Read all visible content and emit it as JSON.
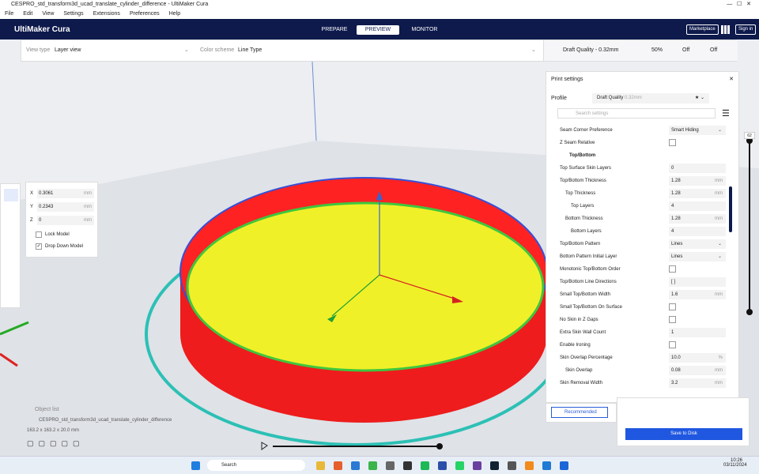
{
  "window_title": "CESPRO_std_transform3d_ucad_translate_cylinder_difference - UltiMaker Cura",
  "menu": [
    "File",
    "Edit",
    "View",
    "Settings",
    "Extensions",
    "Preferences",
    "Help"
  ],
  "header": {
    "brand": "UltiMaker Cura",
    "tabs": [
      "PREPARE",
      "PREVIEW",
      "MONITOR"
    ],
    "marketplace": "Marketplace",
    "sign_in": "Sign in"
  },
  "toolbar": {
    "view_type_label": "View type",
    "view_type": "Layer view",
    "color_scheme_label": "Color scheme",
    "color_scheme": "Line Type",
    "quality": "Draft Quality - 0.32mm",
    "infill": "50%",
    "support": "Off",
    "adhesion": "Off"
  },
  "print_settings": {
    "title": "Print settings",
    "profile_label": "Profile",
    "profile": "Draft Quality",
    "profile_detail": "0.32mm",
    "search": "Search settings",
    "section": "Top/Bottom",
    "rows_before": [
      {
        "label": "Seam Corner Preference",
        "value": "Smart Hiding",
        "control": "dropdown",
        "level": 0
      },
      {
        "label": "Z Seam Relative",
        "control": "checkbox",
        "level": 0
      }
    ],
    "rows": [
      {
        "label": "Top Surface Skin Layers",
        "value": "0",
        "control": "text",
        "level": 0
      },
      {
        "label": "Top/Bottom Thickness",
        "value": "1.28",
        "unit": "mm",
        "control": "text",
        "level": 0
      },
      {
        "label": "Top Thickness",
        "value": "1.28",
        "unit": "mm",
        "control": "text",
        "level": 1
      },
      {
        "label": "Top Layers",
        "value": "4",
        "control": "text",
        "level": 2
      },
      {
        "label": "Bottom Thickness",
        "value": "1.28",
        "unit": "mm",
        "control": "text",
        "level": 1
      },
      {
        "label": "Bottom Layers",
        "value": "4",
        "control": "text",
        "level": 2
      },
      {
        "label": "Top/Bottom Pattern",
        "value": "Lines",
        "control": "dropdown",
        "level": 0
      },
      {
        "label": "Bottom Pattern Initial Layer",
        "value": "Lines",
        "control": "dropdown",
        "level": 0
      },
      {
        "label": "Monotonic Top/Bottom Order",
        "control": "checkbox",
        "level": 0
      },
      {
        "label": "Top/Bottom Line Directions",
        "value": "[ ]",
        "control": "text",
        "level": 0
      },
      {
        "label": "Small Top/Bottom Width",
        "value": "1.6",
        "unit": "mm",
        "control": "text",
        "level": 0
      },
      {
        "label": "Small Top/Bottom On Surface",
        "control": "checkbox",
        "level": 0
      },
      {
        "label": "No Skin in Z Gaps",
        "control": "checkbox",
        "level": 0
      },
      {
        "label": "Extra Skin Wall Count",
        "value": "1",
        "control": "text",
        "level": 0
      },
      {
        "label": "Enable Ironing",
        "control": "checkbox",
        "level": 0
      },
      {
        "label": "Skin Overlap Percentage",
        "value": "10.0",
        "unit": "%",
        "control": "text",
        "level": 0
      },
      {
        "label": "Skin Overlap",
        "value": "0.08",
        "unit": "mm",
        "control": "text",
        "level": 1
      },
      {
        "label": "Skin Removal Width",
        "value": "3.2",
        "unit": "mm",
        "control": "text",
        "level": 0
      }
    ],
    "recommended": "Recommended",
    "save": "Save to Disk"
  },
  "layer_slider": {
    "value": "62"
  },
  "move_panel": {
    "x": "0.3061",
    "y": "0.2343",
    "z": "0",
    "unit": "mm",
    "labels": [
      "X",
      "Y",
      "Z"
    ],
    "lock": "Lock Model",
    "drop": "Drop Down Model"
  },
  "object_list": {
    "title": "Object list",
    "name": "CESPRO_std_transform3d_ucad_translate_cylinder_difference",
    "size": "163.2 x 163.2 x 20.0 mm"
  },
  "taskbar": {
    "search": "Search",
    "time": "10:26",
    "date": "03/11/2024"
  }
}
